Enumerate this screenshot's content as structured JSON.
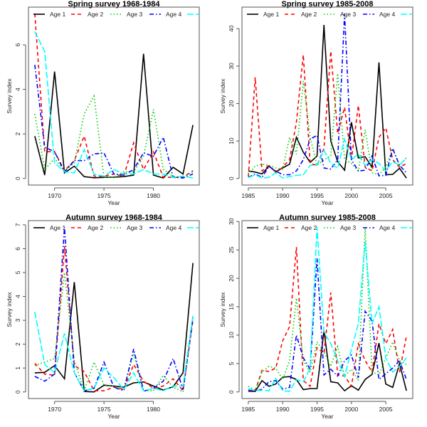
{
  "chart_data": [
    {
      "type": "line",
      "title": "Spring survey 1968-1984",
      "xlabel": "Year",
      "ylabel": "Survey index",
      "x": [
        1968,
        1969,
        1970,
        1971,
        1972,
        1973,
        1974,
        1975,
        1976,
        1977,
        1978,
        1979,
        1980,
        1981,
        1982,
        1983,
        1984
      ],
      "xticks": [
        1970,
        1975,
        1980
      ],
      "yticks": [
        0,
        2,
        4,
        6
      ],
      "grid": false,
      "legend": "top",
      "series": [
        {
          "name": "Age 1",
          "color": "#000000",
          "values": [
            1.9,
            0.15,
            4.8,
            0.25,
            0.55,
            0.08,
            0.03,
            0.05,
            0.06,
            0.08,
            0.15,
            5.6,
            0.15,
            0.02,
            0.5,
            0.2,
            2.4
          ]
        },
        {
          "name": "Age 2",
          "color": "#ff0000",
          "values": [
            7.4,
            1.2,
            1.2,
            0.35,
            0.8,
            1.9,
            0.1,
            0.1,
            0.2,
            0.1,
            1.6,
            0.4,
            1.2,
            0.05,
            0.05,
            0.05,
            0.35
          ]
        },
        {
          "name": "Age 3",
          "color": "#00cc00",
          "values": [
            2.9,
            0.4,
            0.9,
            0.35,
            0.7,
            2.9,
            3.7,
            0.05,
            0.05,
            0.3,
            0.3,
            1.0,
            3.1,
            0.4,
            0.1,
            0.05,
            0.3
          ]
        },
        {
          "name": "Age 4",
          "color": "#0000ff",
          "values": [
            5.1,
            1.4,
            1.2,
            0.3,
            0.8,
            0.8,
            1.1,
            1.15,
            0.2,
            0.15,
            0.4,
            1.15,
            1.0,
            1.85,
            0.05,
            0.02,
            0.2
          ]
        },
        {
          "name": "",
          "color": "#00ffff",
          "values": [
            6.6,
            5.7,
            0.7,
            0.3,
            0.25,
            1.3,
            0.2,
            0.1,
            0.4,
            0.2,
            0.2,
            0.4,
            0.2,
            0.2,
            0.05,
            0.1,
            0.02
          ]
        }
      ]
    },
    {
      "type": "line",
      "title": "Spring survey 1985-2008",
      "xlabel": "Year",
      "ylabel": "Survey index",
      "x": [
        1985,
        1986,
        1987,
        1988,
        1989,
        1990,
        1991,
        1992,
        1993,
        1994,
        1995,
        1996,
        1997,
        1998,
        1999,
        2000,
        2001,
        2002,
        2003,
        2004,
        2005,
        2006,
        2007,
        2008
      ],
      "xticks": [
        1985,
        1990,
        1995,
        2000,
        2005
      ],
      "yticks": [
        0,
        10,
        20,
        30,
        40
      ],
      "grid": false,
      "legend": "top",
      "series": [
        {
          "name": "Age 1",
          "color": "#000000",
          "values": [
            2,
            1.7,
            1.2,
            3.3,
            1.8,
            2.8,
            3.8,
            11,
            7,
            4.3,
            6,
            41,
            10,
            4.5,
            2.2,
            15,
            5.5,
            5.8,
            3,
            31,
            1,
            1.1,
            2.7,
            0.1
          ]
        },
        {
          "name": "Age 2",
          "color": "#ff0000",
          "values": [
            0.5,
            27,
            2,
            3.5,
            1.5,
            3,
            5,
            15,
            33,
            4,
            3.5,
            8,
            34,
            12,
            19,
            5,
            19.5,
            3,
            2,
            11,
            13.5,
            5,
            3,
            4
          ]
        },
        {
          "name": "Age 3",
          "color": "#00cc00",
          "values": [
            1,
            3.3,
            3.8,
            3.5,
            2.8,
            2.5,
            11,
            6.5,
            26,
            11,
            3.5,
            5,
            6,
            28,
            5,
            4,
            2,
            13,
            1.5,
            1,
            3,
            8,
            3.5,
            5.5
          ]
        },
        {
          "name": "Age 4",
          "color": "#0000ff",
          "values": [
            0.3,
            1.2,
            0.3,
            3.2,
            2,
            1,
            1,
            2,
            5,
            10.5,
            11.5,
            2.8,
            2.5,
            5,
            44,
            5,
            2,
            2.2,
            6,
            0.7,
            0.8,
            8,
            3.5,
            1.5
          ]
        },
        {
          "name": "",
          "color": "#00ffff",
          "values": [
            0.2,
            1,
            0.1,
            0.3,
            1.5,
            0.1,
            0.5,
            0.8,
            1,
            3.5,
            3.5,
            7.5,
            4,
            2.7,
            10.5,
            5,
            6.5,
            3.5,
            5,
            4,
            2,
            4.5,
            3.5,
            5.5
          ]
        }
      ]
    },
    {
      "type": "line",
      "title": "Autumn survey 1968-1984",
      "xlabel": "Year",
      "ylabel": "Survey index",
      "x": [
        1968,
        1969,
        1970,
        1971,
        1972,
        1973,
        1974,
        1975,
        1976,
        1977,
        1978,
        1979,
        1980,
        1981,
        1982,
        1983,
        1984
      ],
      "xticks": [
        1970,
        1975,
        1980
      ],
      "yticks": [
        0,
        1,
        2,
        3,
        4,
        5,
        6,
        7
      ],
      "grid": false,
      "legend": "top",
      "series": [
        {
          "name": "Age 1",
          "color": "#000000",
          "values": [
            0.8,
            0.82,
            1.1,
            0.55,
            4.6,
            0.02,
            0.0,
            0.28,
            0.25,
            0.2,
            0.38,
            0.42,
            0.25,
            0.08,
            0.22,
            0.8,
            5.4
          ]
        },
        {
          "name": "Age 2",
          "color": "#ff0000",
          "values": [
            1.2,
            0.75,
            0.7,
            6.1,
            1.1,
            0.85,
            0.05,
            0.05,
            0.2,
            0.1,
            1.15,
            0.45,
            0.15,
            0.25,
            0.55,
            0.05,
            3.0
          ]
        },
        {
          "name": "Age 3",
          "color": "#00cc00",
          "values": [
            1.1,
            1.25,
            1.4,
            5.0,
            1.3,
            0.05,
            1.25,
            0.3,
            0.25,
            0.15,
            1.6,
            0.05,
            0.05,
            0.7,
            0.2,
            0.0,
            3.1
          ]
        },
        {
          "name": "Age 4",
          "color": "#0000ff",
          "values": [
            0.65,
            0.45,
            0.75,
            6.9,
            0.8,
            0.05,
            0.15,
            1.25,
            0.2,
            0.05,
            1.8,
            0.03,
            0.15,
            0.45,
            1.4,
            0.1,
            3.1
          ]
        },
        {
          "name": "",
          "color": "#00ffff",
          "values": [
            3.35,
            1.15,
            0.8,
            2.45,
            0.8,
            0.05,
            0.15,
            1.0,
            0.6,
            0.1,
            0.8,
            0.05,
            0.15,
            0.05,
            0.25,
            0.25,
            3.2
          ]
        }
      ]
    },
    {
      "type": "line",
      "title": "Autumn survey 1985-2008",
      "xlabel": "Year",
      "ylabel": "Survey index",
      "x": [
        1985,
        1986,
        1987,
        1988,
        1989,
        1990,
        1991,
        1992,
        1993,
        1994,
        1995,
        1996,
        1997,
        1998,
        1999,
        2000,
        2001,
        2002,
        2003,
        2004,
        2005,
        2006,
        2007,
        2008
      ],
      "xticks": [
        1985,
        1990,
        1995,
        2000,
        2005
      ],
      "yticks": [
        0,
        5,
        10,
        15,
        20,
        25,
        30
      ],
      "grid": false,
      "legend": "top",
      "series": [
        {
          "name": "Age 1",
          "color": "#000000",
          "values": [
            0.1,
            0.1,
            2,
            1,
            1.4,
            2.6,
            2.7,
            2.2,
            0.4,
            0.6,
            0.6,
            10.8,
            1.8,
            1.6,
            0.2,
            1.1,
            0.3,
            2.2,
            3.1,
            8.6,
            1.4,
            0.8,
            5,
            0.2
          ]
        },
        {
          "name": "Age 2",
          "color": "#ff0000",
          "values": [
            0.1,
            0.2,
            3.8,
            3.6,
            4.2,
            9,
            11.5,
            25.5,
            2,
            1,
            7.8,
            6.8,
            17.5,
            3,
            2.8,
            1,
            8.5,
            5.5,
            3.5,
            12,
            8.5,
            11,
            3.5,
            9.8
          ]
        },
        {
          "name": "Age 3",
          "color": "#00cc00",
          "values": [
            1,
            0.3,
            3.5,
            4.5,
            4.2,
            2.2,
            5.5,
            16.5,
            5.5,
            3.5,
            8.8,
            7,
            4.5,
            8,
            2.8,
            4,
            2,
            29,
            3.5,
            3,
            6,
            8.8,
            5.5,
            4.8
          ]
        },
        {
          "name": "Age 4",
          "color": "#0000ff",
          "values": [
            0.3,
            0.1,
            0.5,
            1.8,
            2,
            0.5,
            0.8,
            10,
            6,
            4,
            23.5,
            3,
            4,
            2.8,
            5.5,
            6.5,
            2.5,
            14.2,
            12.5,
            2.2,
            3.2,
            4.2,
            5.5,
            2.2
          ]
        },
        {
          "name": "",
          "color": "#00ffff",
          "values": [
            0.6,
            0.2,
            0.3,
            0.2,
            2.4,
            0.2,
            0.1,
            2.2,
            1.8,
            4.2,
            29,
            10.5,
            8.5,
            5.5,
            2.7,
            7.5,
            12,
            26.5,
            12,
            15,
            6,
            3.5,
            4.5,
            6
          ]
        }
      ]
    }
  ]
}
